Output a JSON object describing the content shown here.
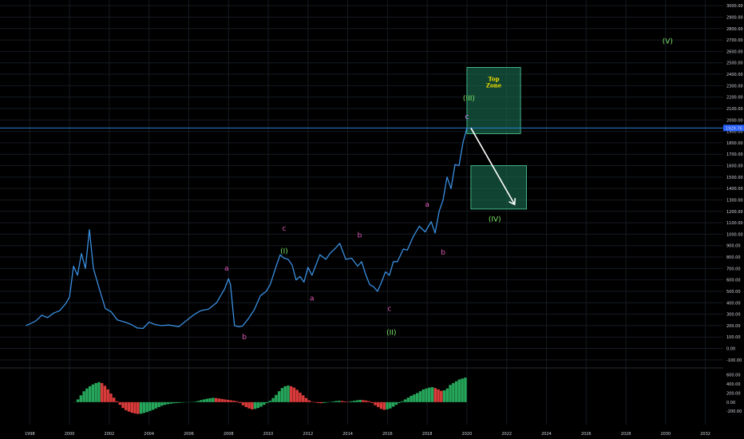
{
  "colors": {
    "background": "#000000",
    "grid": "#151a22",
    "price_line": "#3a8fe0",
    "level_line": "#2a7fd4",
    "price_badge_bg": "#2962ff",
    "zone_fill": "#1e7a5a",
    "zone_stroke": "#4fd3a0",
    "arrow": "#ffffff",
    "label_pink": "#e05ab8",
    "label_green": "#7de86a",
    "label_purple": "#d080ff",
    "hist_up": "#26a65b",
    "hist_down": "#d93a3a",
    "axis_text": "#d1d4dc"
  },
  "chart_data": [
    {
      "type": "line",
      "scale": "linear",
      "x_ticks": [
        "1998",
        "2000",
        "2002",
        "2004",
        "2006",
        "2008",
        "2010",
        "2012",
        "2014",
        "2016",
        "2018",
        "2020",
        "2022",
        "2024",
        "2026",
        "2028",
        "2030",
        "2032"
      ],
      "y_ticks": [
        "3000.00",
        "2900.00",
        "2800.00",
        "2700.00",
        "2600.00",
        "2500.00",
        "2400.00",
        "2300.00",
        "2200.00",
        "2100.00",
        "2000.00",
        "1900.00",
        "1800.00",
        "1700.00",
        "1600.00",
        "1500.00",
        "1400.00",
        "1300.00",
        "1200.00",
        "1100.00",
        "1000.00",
        "900.00",
        "800.00",
        "700.00",
        "600.00",
        "500.00",
        "400.00",
        "300.00",
        "200.00",
        "100.00",
        "0.00",
        "-100.00"
      ],
      "ylim": [
        -150,
        3050
      ],
      "last_price_label": "1929.76",
      "last_price": 1929.76,
      "series": [
        {
          "x": [
            1997.8,
            1998.0,
            1998.3,
            1998.6,
            1998.9,
            1999.2,
            1999.5,
            1999.8,
            2000.0,
            2000.2,
            2000.4,
            2000.6,
            2000.8,
            2001.0,
            2001.2,
            2001.5,
            2001.8,
            2002.1,
            2002.4,
            2002.8,
            2003.1,
            2003.4,
            2003.7,
            2004.0,
            2004.3,
            2004.6,
            2005.0,
            2005.5,
            2006.0,
            2006.3,
            2006.6,
            2007.0,
            2007.4,
            2007.8,
            2008.0,
            2008.1,
            2008.3,
            2008.5,
            2008.7,
            2009.0,
            2009.3,
            2009.6,
            2009.9,
            2010.1,
            2010.4,
            2010.6,
            2010.8,
            2011.0,
            2011.2,
            2011.4,
            2011.6,
            2011.8,
            2012.0,
            2012.2,
            2012.4,
            2012.6,
            2012.9,
            2013.1,
            2013.4,
            2013.6,
            2013.9,
            2014.2,
            2014.5,
            2014.7,
            2014.9,
            2015.1,
            2015.3,
            2015.5,
            2015.7,
            2015.9,
            2016.1,
            2016.3,
            2016.5,
            2016.8,
            2017.0,
            2017.3,
            2017.6,
            2017.9,
            2018.2,
            2018.4,
            2018.6,
            2018.8,
            2019.0,
            2019.2,
            2019.4,
            2019.6,
            2019.8,
            2020.0
          ],
          "y": [
            200,
            215,
            240,
            290,
            270,
            310,
            330,
            390,
            450,
            720,
            640,
            830,
            700,
            1040,
            700,
            520,
            350,
            320,
            250,
            230,
            210,
            180,
            175,
            230,
            210,
            200,
            205,
            190,
            260,
            300,
            330,
            345,
            400,
            520,
            610,
            560,
            200,
            190,
            195,
            260,
            340,
            460,
            500,
            560,
            720,
            820,
            790,
            780,
            730,
            600,
            630,
            580,
            710,
            640,
            730,
            820,
            780,
            830,
            880,
            920,
            780,
            790,
            720,
            760,
            650,
            560,
            540,
            500,
            580,
            670,
            640,
            760,
            760,
            870,
            860,
            980,
            1070,
            1020,
            1110,
            1010,
            1200,
            1300,
            1500,
            1400,
            1610,
            1600,
            1800,
            1930
          ]
        }
      ],
      "zones": [
        {
          "title": "Top Zone",
          "x0": 2020.0,
          "x1": 2022.7,
          "y0": 1880,
          "y1": 2460
        },
        {
          "title": "",
          "x0": 2020.2,
          "x1": 2023.0,
          "y0": 1220,
          "y1": 1600
        }
      ],
      "arrow": {
        "x0": 2020.2,
        "y0": 1930,
        "x1": 2022.4,
        "y1": 1260
      },
      "wave_labels": [
        {
          "text": "a",
          "x": 2007.9,
          "y": 680,
          "color": "label_pink"
        },
        {
          "text": "b",
          "x": 2008.8,
          "y": 80,
          "color": "label_pink"
        },
        {
          "text": "c",
          "x": 2010.8,
          "y": 1030,
          "color": "label_pink"
        },
        {
          "text": "(I)",
          "x": 2010.8,
          "y": 830,
          "color": "label_green"
        },
        {
          "text": "a",
          "x": 2012.2,
          "y": 420,
          "color": "label_pink"
        },
        {
          "text": "b",
          "x": 2014.6,
          "y": 970,
          "color": "label_pink"
        },
        {
          "text": "c",
          "x": 2016.1,
          "y": 330,
          "color": "label_pink"
        },
        {
          "text": "(II)",
          "x": 2016.2,
          "y": 120,
          "color": "label_green"
        },
        {
          "text": "a",
          "x": 2018.0,
          "y": 1240,
          "color": "label_pink"
        },
        {
          "text": "b",
          "x": 2018.8,
          "y": 820,
          "color": "label_pink"
        },
        {
          "text": "(III)",
          "x": 2020.1,
          "y": 2170,
          "color": "label_green"
        },
        {
          "text": "c",
          "x": 2020.0,
          "y": 2010,
          "color": "label_purple"
        },
        {
          "text": "(IV)",
          "x": 2021.4,
          "y": 1110,
          "color": "label_green"
        },
        {
          "text": "(V)",
          "x": 2030.1,
          "y": 2670,
          "color": "label_green"
        }
      ]
    },
    {
      "type": "bar",
      "y_ticks": [
        "600.00",
        "400.00",
        "200.00",
        "0.00",
        "-200.00"
      ],
      "ylim": [
        -320,
        700
      ],
      "x_start": 2000.2,
      "x_end": 2020.0,
      "values": [
        0,
        60,
        150,
        240,
        300,
        350,
        390,
        420,
        440,
        420,
        360,
        280,
        190,
        100,
        20,
        -60,
        -130,
        -180,
        -210,
        -235,
        -250,
        -260,
        -255,
        -240,
        -220,
        -195,
        -170,
        -140,
        -110,
        -80,
        -60,
        -45,
        -35,
        -25,
        -20,
        -15,
        -10,
        -5,
        0,
        5,
        10,
        25,
        45,
        60,
        75,
        85,
        95,
        90,
        80,
        70,
        60,
        50,
        40,
        30,
        20,
        -20,
        -70,
        -110,
        -140,
        -160,
        -150,
        -130,
        -100,
        -60,
        -20,
        30,
        90,
        160,
        240,
        310,
        350,
        365,
        350,
        320,
        270,
        210,
        150,
        90,
        40,
        10,
        -10,
        -20,
        -25,
        -20,
        -10,
        5,
        15,
        25,
        30,
        25,
        15,
        10,
        20,
        30,
        40,
        50,
        45,
        35,
        20,
        -20,
        -70,
        -110,
        -150,
        -170,
        -160,
        -140,
        -100,
        -60,
        -20,
        20,
        60,
        100,
        140,
        170,
        200,
        240,
        280,
        300,
        320,
        330,
        310,
        280,
        250,
        260,
        300,
        380,
        420,
        460,
        500,
        520,
        540
      ]
    }
  ]
}
